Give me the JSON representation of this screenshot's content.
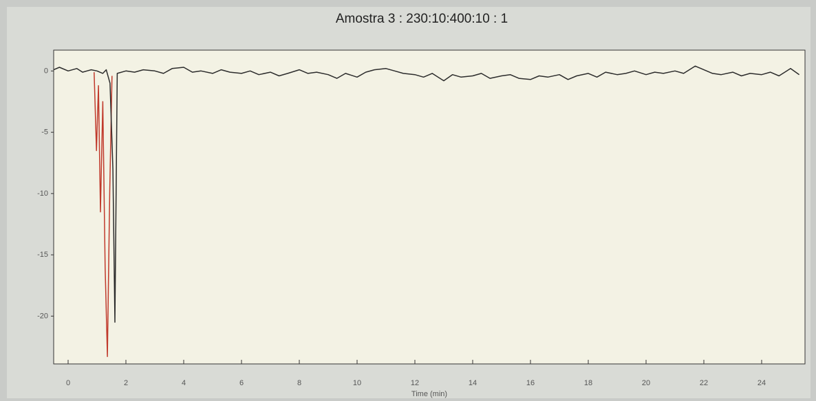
{
  "chart_data": {
    "type": "line",
    "title": "Amostra 3 : 230:10:400:10 : 1",
    "x_label": "Time (min)",
    "xlim": [
      -0.5,
      25.5
    ],
    "xticks": [
      0,
      2,
      4,
      6,
      8,
      10,
      12,
      14,
      16,
      18,
      20,
      22,
      24
    ],
    "ylim": [
      -23.9,
      1.7
    ],
    "yticks": [
      0,
      -5,
      -10,
      -15,
      -20
    ],
    "grid": false,
    "series": [
      {
        "color": "#c0392b",
        "x": [
          0.9,
          0.98,
          1.05,
          1.12,
          1.2,
          1.28,
          1.36,
          1.44,
          1.52
        ],
        "values": [
          -0.1,
          -6.5,
          -1.2,
          -11.5,
          -2.5,
          -16.0,
          -23.3,
          -9.8,
          -0.4
        ]
      },
      {
        "color": "#2b2b2b",
        "x": [
          -0.5,
          -0.3,
          0,
          0.3,
          0.5,
          0.8,
          1.0,
          1.2,
          1.32,
          1.45,
          1.55,
          1.62,
          1.7,
          2.0,
          2.3,
          2.6,
          3.0,
          3.3,
          3.6,
          4.0,
          4.3,
          4.6,
          5.0,
          5.3,
          5.6,
          6.0,
          6.3,
          6.6,
          7.0,
          7.3,
          7.6,
          8.0,
          8.3,
          8.6,
          9.0,
          9.3,
          9.6,
          10.0,
          10.3,
          10.6,
          11.0,
          11.3,
          11.6,
          12.0,
          12.3,
          12.6,
          13.0,
          13.3,
          13.6,
          14.0,
          14.3,
          14.6,
          15.0,
          15.3,
          15.6,
          16.0,
          16.3,
          16.6,
          17.0,
          17.3,
          17.6,
          18.0,
          18.3,
          18.6,
          19.0,
          19.3,
          19.6,
          20.0,
          20.3,
          20.6,
          21.0,
          21.3,
          21.7,
          22.0,
          22.3,
          22.6,
          23.0,
          23.3,
          23.6,
          24.0,
          24.3,
          24.6,
          25.0,
          25.3
        ],
        "values": [
          0.1,
          0.3,
          0.0,
          0.2,
          -0.1,
          0.1,
          0.0,
          -0.2,
          0.1,
          -1.0,
          -8.0,
          -20.5,
          -0.2,
          0.0,
          -0.1,
          0.1,
          0.0,
          -0.2,
          0.2,
          0.3,
          -0.1,
          0.0,
          -0.2,
          0.1,
          -0.1,
          -0.2,
          0.0,
          -0.3,
          -0.1,
          -0.4,
          -0.2,
          0.1,
          -0.2,
          -0.1,
          -0.3,
          -0.6,
          -0.2,
          -0.5,
          -0.1,
          0.1,
          0.2,
          0.0,
          -0.2,
          -0.3,
          -0.5,
          -0.2,
          -0.8,
          -0.3,
          -0.5,
          -0.4,
          -0.2,
          -0.6,
          -0.4,
          -0.3,
          -0.6,
          -0.7,
          -0.4,
          -0.5,
          -0.3,
          -0.7,
          -0.4,
          -0.2,
          -0.5,
          -0.1,
          -0.3,
          -0.2,
          0.0,
          -0.3,
          -0.1,
          -0.2,
          0.0,
          -0.2,
          0.4,
          0.1,
          -0.2,
          -0.3,
          -0.1,
          -0.4,
          -0.2,
          -0.3,
          -0.1,
          -0.4,
          0.2,
          -0.3
        ]
      }
    ]
  }
}
